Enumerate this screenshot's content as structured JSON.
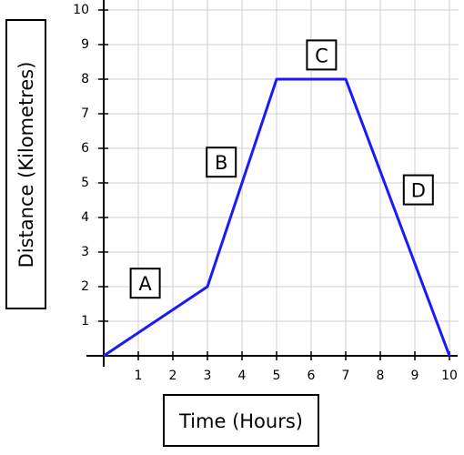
{
  "chart_data": {
    "type": "line",
    "title": "",
    "xlabel": "Time (Hours)",
    "ylabel": "Distance (Kilometres)",
    "xlim": [
      0,
      10
    ],
    "ylim": [
      0,
      10
    ],
    "x_ticks": [
      "1",
      "2",
      "3",
      "4",
      "5",
      "6",
      "7",
      "8",
      "9",
      "10"
    ],
    "y_ticks": [
      "1",
      "2",
      "3",
      "4",
      "5",
      "6",
      "7",
      "8",
      "9",
      "10"
    ],
    "grid": true,
    "series": [
      {
        "x": [
          0,
          3,
          5,
          7,
          10
        ],
        "y": [
          0,
          2,
          8,
          8,
          0
        ],
        "color": "#1a1aff"
      }
    ],
    "annotations": [
      {
        "text": "A",
        "x": 1.2,
        "y": 2.1
      },
      {
        "text": "B",
        "x": 3.4,
        "y": 5.6
      },
      {
        "text": "C",
        "x": 6.3,
        "y": 8.7
      },
      {
        "text": "D",
        "x": 9.1,
        "y": 4.8
      }
    ]
  }
}
